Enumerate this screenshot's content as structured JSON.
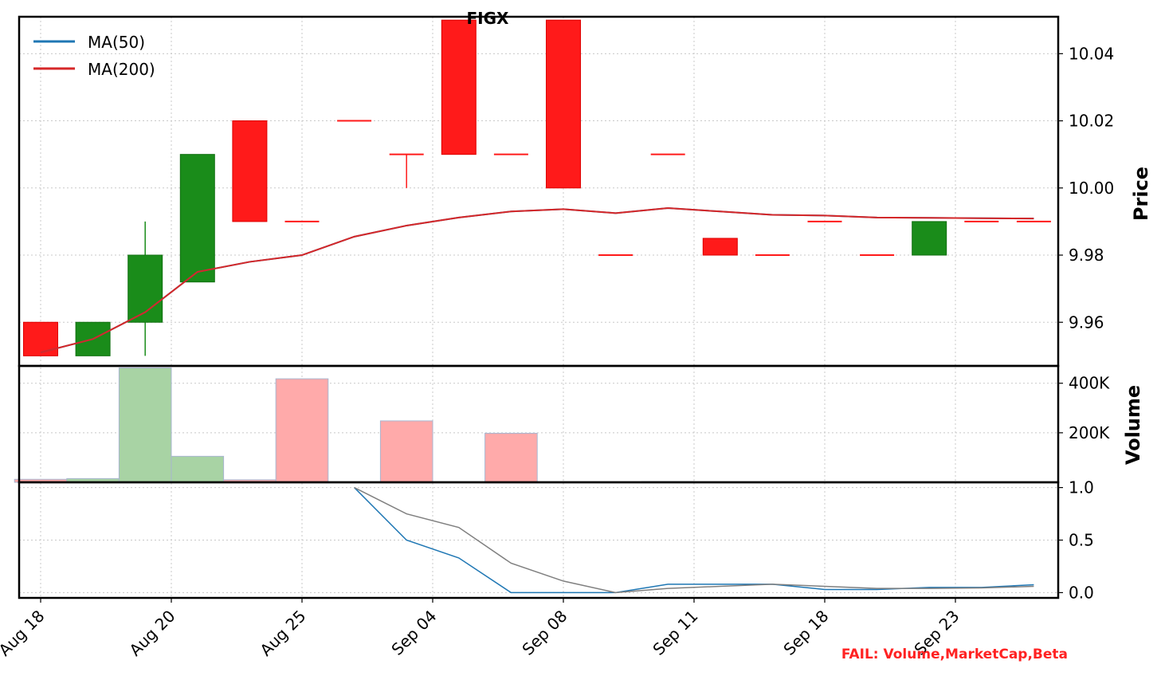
{
  "chart_data": {
    "type": "candlestick",
    "title": "FIGX",
    "x_tick_labels": [
      "Aug 18",
      "Aug 20",
      "Aug 25",
      "Sep 04",
      "Sep 08",
      "Sep 11",
      "Sep 18",
      "Sep 23"
    ],
    "x_tick_positions": [
      0,
      2.5,
      5,
      7.5,
      10,
      12.5,
      15,
      17.5
    ],
    "price": {
      "ylabel": "Price",
      "ylim": [
        9.947,
        10.051
      ],
      "yticks": [
        9.96,
        9.98,
        10.0,
        10.02,
        10.04
      ],
      "ytick_labels": [
        "9.96",
        "9.98",
        "10.00",
        "10.02",
        "10.04"
      ],
      "candles": [
        {
          "x": 0,
          "open": 9.96,
          "close": 9.95,
          "high": 9.96,
          "low": 9.95
        },
        {
          "x": 1,
          "open": 9.95,
          "close": 9.96,
          "high": 9.96,
          "low": 9.95
        },
        {
          "x": 2,
          "open": 9.96,
          "close": 9.98,
          "high": 9.99,
          "low": 9.95
        },
        {
          "x": 3,
          "open": 9.972,
          "close": 10.01,
          "high": 10.01,
          "low": 9.972
        },
        {
          "x": 4,
          "open": 10.02,
          "close": 9.99,
          "high": 10.02,
          "low": 9.99
        },
        {
          "x": 5,
          "open": 9.99,
          "close": 9.99,
          "high": 9.99,
          "low": 9.99
        },
        {
          "x": 6,
          "open": 10.02,
          "close": 10.02,
          "high": 10.02,
          "low": 10.02
        },
        {
          "x": 7,
          "open": 10.01,
          "close": 10.01,
          "high": 10.01,
          "low": 10.0
        },
        {
          "x": 8,
          "open": 10.05,
          "close": 10.01,
          "high": 10.05,
          "low": 10.01
        },
        {
          "x": 9,
          "open": 10.01,
          "close": 10.01,
          "high": 10.01,
          "low": 10.01
        },
        {
          "x": 10,
          "open": 10.05,
          "close": 10.0,
          "high": 10.05,
          "low": 10.0
        },
        {
          "x": 11,
          "open": 9.98,
          "close": 9.98,
          "high": 9.98,
          "low": 9.98
        },
        {
          "x": 12,
          "open": 10.01,
          "close": 10.01,
          "high": 10.01,
          "low": 10.01
        },
        {
          "x": 13,
          "open": 9.985,
          "close": 9.98,
          "high": 9.985,
          "low": 9.98
        },
        {
          "x": 14,
          "open": 9.98,
          "close": 9.98,
          "high": 9.98,
          "low": 9.98
        },
        {
          "x": 15,
          "open": 9.99,
          "close": 9.99,
          "high": 9.99,
          "low": 9.99
        },
        {
          "x": 16,
          "open": 9.98,
          "close": 9.98,
          "high": 9.98,
          "low": 9.98
        },
        {
          "x": 17,
          "open": 9.98,
          "close": 9.99,
          "high": 9.99,
          "low": 9.98
        },
        {
          "x": 18,
          "open": 9.99,
          "close": 9.99,
          "high": 9.99,
          "low": 9.99
        },
        {
          "x": 19,
          "open": 9.99,
          "close": 9.99,
          "high": 9.99,
          "low": 9.99
        }
      ],
      "series": [
        {
          "name": "MA(50)",
          "color": "#1f77b4",
          "x": [
            0,
            1,
            2,
            3,
            4,
            5,
            6,
            7,
            8,
            9,
            10,
            11,
            12,
            13,
            14,
            15,
            16,
            17,
            18,
            19
          ],
          "values": [
            9.951,
            9.955,
            9.963,
            9.975,
            9.978,
            9.98,
            9.9855,
            9.9888,
            9.9912,
            9.993,
            9.9937,
            9.9925,
            9.994,
            9.993,
            9.992,
            9.9918,
            9.9912,
            9.9911,
            9.991,
            9.9909
          ]
        },
        {
          "name": "MA(200)",
          "color": "#d62728",
          "x": [
            0,
            1,
            2,
            3,
            4,
            5,
            6,
            7,
            8,
            9,
            10,
            11,
            12,
            13,
            14,
            15,
            16,
            17,
            18,
            19
          ],
          "values": [
            9.951,
            9.955,
            9.963,
            9.975,
            9.978,
            9.98,
            9.9855,
            9.9888,
            9.9912,
            9.993,
            9.9937,
            9.9925,
            9.994,
            9.993,
            9.992,
            9.9918,
            9.9912,
            9.9911,
            9.991,
            9.9909
          ]
        }
      ],
      "legend_location": "upper-left"
    },
    "volume": {
      "ylabel": "Volume",
      "ylim": [
        0,
        470000
      ],
      "yticks": [
        200000,
        400000
      ],
      "ytick_labels": [
        "200K",
        "400K"
      ],
      "bars": [
        {
          "start": -0.5,
          "end": 0.5,
          "value": 12000,
          "color": "#ffaaaa"
        },
        {
          "start": 0.5,
          "end": 1.5,
          "value": 15000,
          "color": "#a8d3a4"
        },
        {
          "start": 1.5,
          "end": 2.5,
          "value": 462000,
          "color": "#a8d3a4"
        },
        {
          "start": 2.5,
          "end": 3.5,
          "value": 105000,
          "color": "#a8d3a4"
        },
        {
          "start": 3.5,
          "end": 4.5,
          "value": 10000,
          "color": "#ffaaaa"
        },
        {
          "start": 4.5,
          "end": 5.5,
          "value": 418000,
          "color": "#ffaaaa"
        },
        {
          "start": 6.5,
          "end": 7.5,
          "value": 248000,
          "color": "#ffaaaa"
        },
        {
          "start": 8.5,
          "end": 9.5,
          "value": 198000,
          "color": "#ffaaaa"
        },
        {
          "start": 11.5,
          "end": 12.5,
          "value": 3000,
          "color": "#d0d0d0"
        }
      ]
    },
    "indicator": {
      "ylim": [
        -0.05,
        1.05
      ],
      "yticks": [
        0.0,
        0.5,
        1.0
      ],
      "ytick_labels": [
        "0.0",
        "0.5",
        "1.0"
      ],
      "series": [
        {
          "color": "#1f77b4",
          "x": [
            6,
            7,
            8,
            9,
            10,
            11,
            12,
            13,
            14,
            15,
            16,
            17,
            18,
            19
          ],
          "values": [
            1.0,
            0.5,
            0.33,
            0.0,
            0.0,
            0.0,
            0.08,
            0.08,
            0.08,
            0.03,
            0.03,
            0.05,
            0.05,
            0.075
          ]
        },
        {
          "color": "#7f7f7f",
          "x": [
            6,
            7,
            8,
            9,
            10,
            11,
            12,
            13,
            14,
            15,
            16,
            17,
            18,
            19
          ],
          "values": [
            1.0,
            0.75,
            0.62,
            0.28,
            0.11,
            0.0,
            0.04,
            0.06,
            0.08,
            0.06,
            0.04,
            0.04,
            0.045,
            0.06
          ]
        }
      ]
    },
    "colors": {
      "up": "#1a8c1a",
      "down": "#ff1a1a"
    },
    "status_text": "FAIL: Volume,MarketCap,Beta",
    "grid": true
  }
}
